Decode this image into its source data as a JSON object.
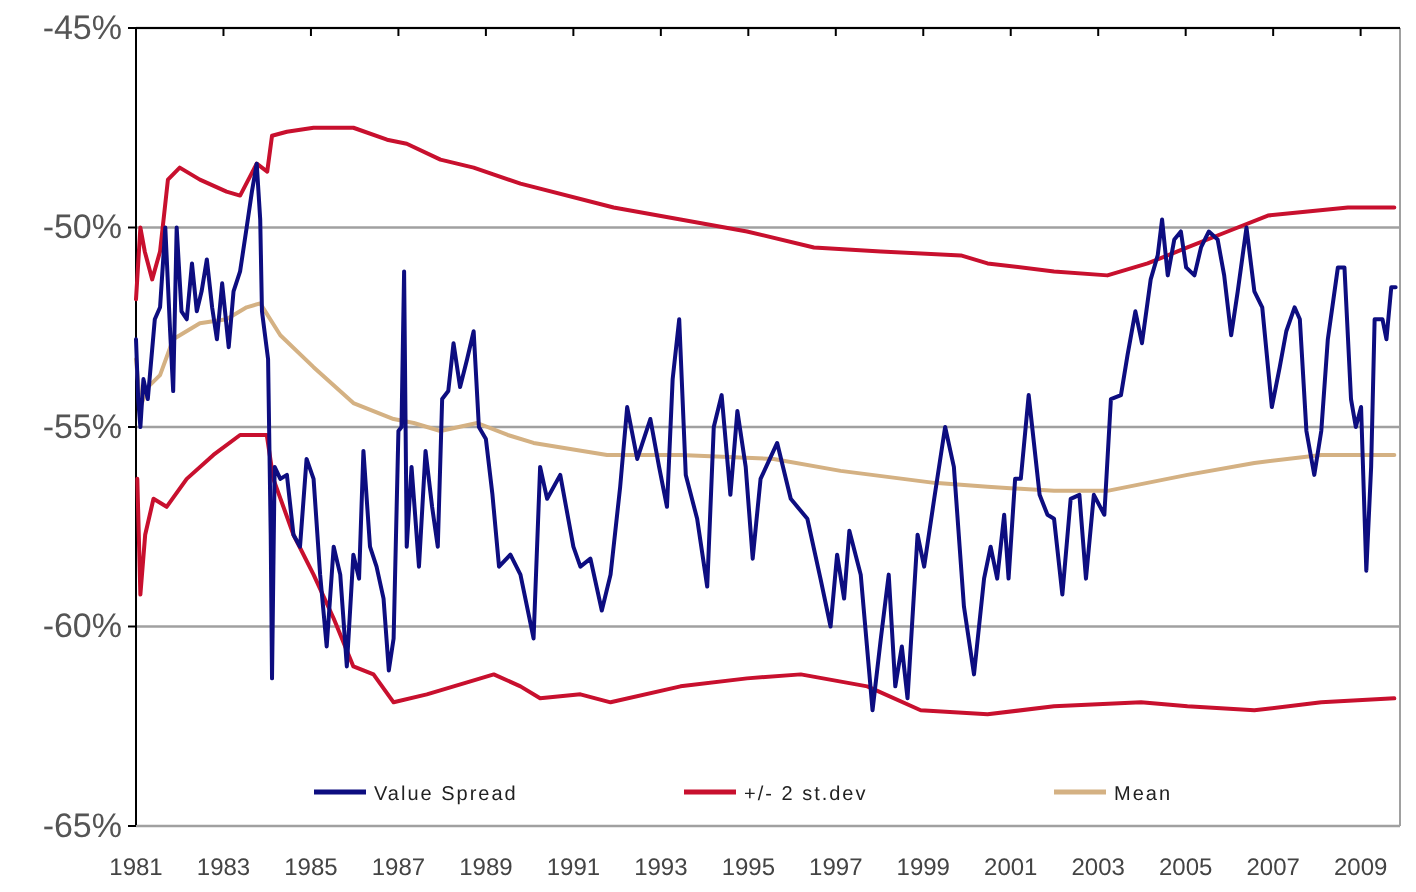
{
  "chart_data": {
    "type": "line",
    "xlim": [
      1981,
      2009.9
    ],
    "xticks": [
      1981,
      1983,
      1985,
      1987,
      1989,
      1991,
      1993,
      1995,
      1997,
      1999,
      2001,
      2003,
      2005,
      2007,
      2009
    ],
    "ylim": [
      -65,
      -45
    ],
    "yticks": [
      {
        "value": -65,
        "label": "-65%"
      },
      {
        "value": -60,
        "label": "-60%"
      },
      {
        "value": -55,
        "label": "-55%"
      },
      {
        "value": -50,
        "label": "-50%"
      },
      {
        "value": -45,
        "label": "-45%"
      }
    ],
    "grid": "y",
    "legend": "bottom",
    "line_style": "solid",
    "marker": "none",
    "series": [
      {
        "name": "Value Spread",
        "color": "#0d0d80",
        "x": [
          1981.0,
          1981.05,
          1981.1,
          1981.17,
          1981.27,
          1981.43,
          1981.55,
          1981.67,
          1981.78,
          1981.85,
          1981.93,
          1982.04,
          1982.16,
          1982.28,
          1982.39,
          1982.5,
          1982.62,
          1982.74,
          1982.85,
          1982.97,
          1983.12,
          1983.23,
          1983.38,
          1983.53,
          1983.65,
          1983.76,
          1983.84,
          1983.88,
          1984.02,
          1984.08,
          1984.11,
          1984.17,
          1984.3,
          1984.45,
          1984.6,
          1984.75,
          1984.9,
          1985.06,
          1985.21,
          1985.36,
          1985.52,
          1985.67,
          1985.82,
          1985.97,
          1986.1,
          1986.2,
          1986.35,
          1986.5,
          1986.66,
          1986.78,
          1986.89,
          1987.0,
          1987.07,
          1987.13,
          1987.19,
          1987.3,
          1987.47,
          1987.62,
          1987.77,
          1987.9,
          1988.0,
          1988.14,
          1988.26,
          1988.41,
          1988.57,
          1988.72,
          1988.84,
          1989.0,
          1989.15,
          1989.3,
          1989.56,
          1989.79,
          1990.09,
          1990.24,
          1990.4,
          1990.7,
          1991.0,
          1991.16,
          1991.39,
          1991.65,
          1991.85,
          1992.07,
          1992.23,
          1992.46,
          1992.76,
          1992.96,
          1993.14,
          1993.27,
          1993.42,
          1993.57,
          1993.83,
          1994.06,
          1994.21,
          1994.39,
          1994.59,
          1994.75,
          1994.94,
          1995.1,
          1995.28,
          1995.66,
          1995.97,
          1996.35,
          1996.65,
          1996.88,
          1997.03,
          1997.19,
          1997.31,
          1997.57,
          1997.84,
          1998.03,
          1998.21,
          1998.36,
          1998.51,
          1998.64,
          1998.87,
          1999.02,
          1999.25,
          1999.5,
          1999.7,
          1999.93,
          2000.16,
          2000.39,
          2000.54,
          2000.69,
          2000.85,
          2000.95,
          2001.1,
          2001.23,
          2001.41,
          2001.66,
          2001.84,
          2001.99,
          2002.18,
          2002.37,
          2002.57,
          2002.72,
          2002.9,
          2003.14,
          2003.29,
          2003.52,
          2003.67,
          2003.85,
          2004.0,
          2004.2,
          2004.36,
          2004.46,
          2004.59,
          2004.74,
          2004.89,
          2005.01,
          2005.2,
          2005.35,
          2005.53,
          2005.73,
          2005.88,
          2006.04,
          2006.19,
          2006.39,
          2006.57,
          2006.75,
          2006.97,
          2007.15,
          2007.3,
          2007.49,
          2007.61,
          2007.76,
          2007.94,
          2008.1,
          2008.25,
          2008.48,
          2008.63,
          2008.78,
          2008.89,
          2009.01,
          2009.13,
          2009.24,
          2009.32,
          2009.5,
          2009.59,
          2009.7,
          2009.8
        ],
        "values": [
          -52.8,
          -54.3,
          -55.0,
          -53.8,
          -54.3,
          -52.3,
          -52.0,
          -50.0,
          -52.6,
          -54.1,
          -50.0,
          -52.1,
          -52.3,
          -50.9,
          -52.1,
          -51.6,
          -50.8,
          -52.0,
          -52.8,
          -51.4,
          -53.0,
          -51.6,
          -51.1,
          -50.0,
          -49.1,
          -48.4,
          -49.8,
          -52.1,
          -53.3,
          -57.7,
          -61.3,
          -56.0,
          -56.3,
          -56.2,
          -57.7,
          -58.0,
          -55.8,
          -56.3,
          -58.7,
          -60.5,
          -58.0,
          -58.7,
          -61.0,
          -58.2,
          -58.8,
          -55.6,
          -58.0,
          -58.5,
          -59.3,
          -61.1,
          -60.3,
          -55.1,
          -55.0,
          -51.1,
          -58.0,
          -56.0,
          -58.5,
          -55.6,
          -57.0,
          -58.0,
          -54.3,
          -54.1,
          -52.9,
          -54.0,
          -53.3,
          -52.6,
          -55.0,
          -55.3,
          -56.7,
          -58.5,
          -58.2,
          -58.7,
          -60.3,
          -56.0,
          -56.8,
          -56.2,
          -58.0,
          -58.5,
          -58.3,
          -59.6,
          -58.7,
          -56.5,
          -54.5,
          -55.8,
          -54.8,
          -56.0,
          -57.0,
          -53.8,
          -52.3,
          -56.2,
          -57.3,
          -59.0,
          -55.0,
          -54.2,
          -56.7,
          -54.6,
          -56.0,
          -58.3,
          -56.3,
          -55.4,
          -56.8,
          -57.3,
          -58.8,
          -60.0,
          -58.2,
          -59.3,
          -57.6,
          -58.7,
          -62.1,
          -60.3,
          -58.7,
          -61.5,
          -60.5,
          -61.8,
          -57.7,
          -58.5,
          -56.8,
          -55.0,
          -56.0,
          -59.5,
          -61.2,
          -58.8,
          -58.0,
          -58.8,
          -57.2,
          -58.8,
          -56.3,
          -56.3,
          -54.2,
          -56.7,
          -57.2,
          -57.3,
          -59.2,
          -56.8,
          -56.7,
          -58.8,
          -56.7,
          -57.2,
          -54.3,
          -54.2,
          -53.2,
          -52.1,
          -52.9,
          -51.3,
          -50.7,
          -49.8,
          -51.2,
          -50.3,
          -50.1,
          -51.0,
          -51.2,
          -50.5,
          -50.1,
          -50.3,
          -51.2,
          -52.7,
          -51.6,
          -50.0,
          -51.6,
          -52.0,
          -54.5,
          -53.5,
          -52.6,
          -52.0,
          -52.3,
          -55.1,
          -56.2,
          -55.1,
          -52.8,
          -51.0,
          -51.0,
          -54.3,
          -55.0,
          -54.5,
          -58.6,
          -56.0,
          -52.3,
          -52.3,
          -52.8,
          -51.5,
          -51.5
        ]
      },
      {
        "name": "+/- 2 st.dev",
        "color": "#c8102e",
        "x": [
          1981.0,
          1981.1,
          1981.2,
          1981.37,
          1981.55,
          1981.73,
          1982.0,
          1982.46,
          1983.07,
          1983.38,
          1983.76,
          1984.0,
          1984.11,
          1984.45,
          1985.06,
          1985.97,
          1986.74,
          1987.19,
          1987.96,
          1988.72,
          1989.79,
          1991.92,
          1993.45,
          1994.97,
          1996.5,
          1998.03,
          1999.86,
          2000.47,
          2001.99,
          2003.21,
          2004.13,
          2005.04,
          2005.96,
          2006.88,
          2007.79,
          2008.71,
          2009.77
        ],
        "values": [
          -51.8,
          -50.0,
          -50.6,
          -51.3,
          -50.6,
          -48.8,
          -48.5,
          -48.8,
          -49.1,
          -49.2,
          -48.4,
          -48.6,
          -47.7,
          -47.6,
          -47.5,
          -47.5,
          -47.8,
          -47.9,
          -48.3,
          -48.5,
          -48.9,
          -49.5,
          -49.8,
          -50.1,
          -50.5,
          -50.6,
          -50.7,
          -50.9,
          -51.1,
          -51.2,
          -50.9,
          -50.5,
          -50.1,
          -49.7,
          -49.6,
          -49.5,
          -49.5
        ]
      },
      {
        "color": "#c8102e",
        "x": [
          1981.03,
          1981.1,
          1981.21,
          1981.4,
          1981.7,
          1982.16,
          1982.77,
          1983.38,
          1983.99,
          1984.14,
          1984.6,
          1985.06,
          1985.52,
          1985.97,
          1986.43,
          1986.89,
          1987.65,
          1988.57,
          1989.18,
          1989.79,
          1990.24,
          1991.16,
          1991.85,
          1993.45,
          1994.97,
          1996.2,
          1997.72,
          1998.94,
          2000.47,
          2001.99,
          2003.98,
          2005.04,
          2006.57,
          2008.1,
          2009.77
        ],
        "values": [
          -56.3,
          -59.2,
          -57.7,
          -56.8,
          -57.0,
          -56.3,
          -55.7,
          -55.2,
          -55.2,
          -56.3,
          -57.7,
          -58.7,
          -59.8,
          -61.0,
          -61.2,
          -61.9,
          -61.7,
          -61.4,
          -61.2,
          -61.5,
          -61.8,
          -61.7,
          -61.9,
          -61.5,
          -61.3,
          -61.2,
          -61.5,
          -62.1,
          -62.2,
          -62.0,
          -61.9,
          -62.0,
          -62.1,
          -61.9,
          -61.8
        ]
      },
      {
        "name": "Mean",
        "color": "#d4b183",
        "x": [
          1981.0,
          1981.1,
          1981.27,
          1981.55,
          1981.85,
          1982.46,
          1983.07,
          1983.53,
          1983.84,
          1984.3,
          1985.06,
          1985.97,
          1986.89,
          1987.35,
          1987.96,
          1988.8,
          1989.5,
          1990.09,
          1991.77,
          1993.45,
          1995.58,
          1997.11,
          1999.25,
          2000.47,
          2001.99,
          2003.21,
          2005.04,
          2006.57,
          2008.1,
          2009.77
        ],
        "values": [
          -53.3,
          -54.5,
          -54.0,
          -53.7,
          -52.8,
          -52.4,
          -52.3,
          -52.0,
          -51.9,
          -52.7,
          -53.5,
          -54.4,
          -54.8,
          -54.9,
          -55.1,
          -54.9,
          -55.2,
          -55.4,
          -55.7,
          -55.7,
          -55.8,
          -56.1,
          -56.4,
          -56.5,
          -56.6,
          -56.6,
          -56.2,
          -55.9,
          -55.7,
          -55.7
        ]
      }
    ]
  }
}
